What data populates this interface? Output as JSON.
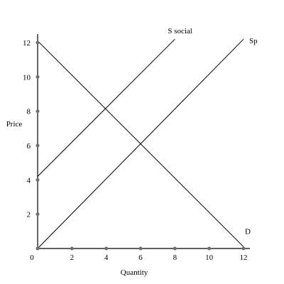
{
  "chart_data": {
    "type": "line",
    "title": "",
    "xlabel": "Quantity",
    "ylabel": "Price",
    "xlim": [
      0,
      12
    ],
    "ylim": [
      0,
      12
    ],
    "x_ticks": [
      "0",
      "2",
      "4",
      "6",
      "8",
      "10",
      "12"
    ],
    "y_ticks": [
      "2",
      "4",
      "6",
      "8",
      "10",
      "12"
    ],
    "x_tick_values": [
      0,
      2,
      4,
      6,
      8,
      10,
      12
    ],
    "y_tick_values": [
      2,
      4,
      6,
      8,
      10,
      12
    ],
    "series": [
      {
        "name": "S social",
        "x": [
          0,
          8
        ],
        "y": [
          4.2,
          12.2
        ]
      },
      {
        "name": "Sp",
        "x": [
          0,
          12
        ],
        "y": [
          0,
          12.2
        ]
      },
      {
        "name": "D",
        "x": [
          0,
          12
        ],
        "y": [
          12.1,
          0.1
        ]
      }
    ],
    "grid": false,
    "legend": "none"
  }
}
